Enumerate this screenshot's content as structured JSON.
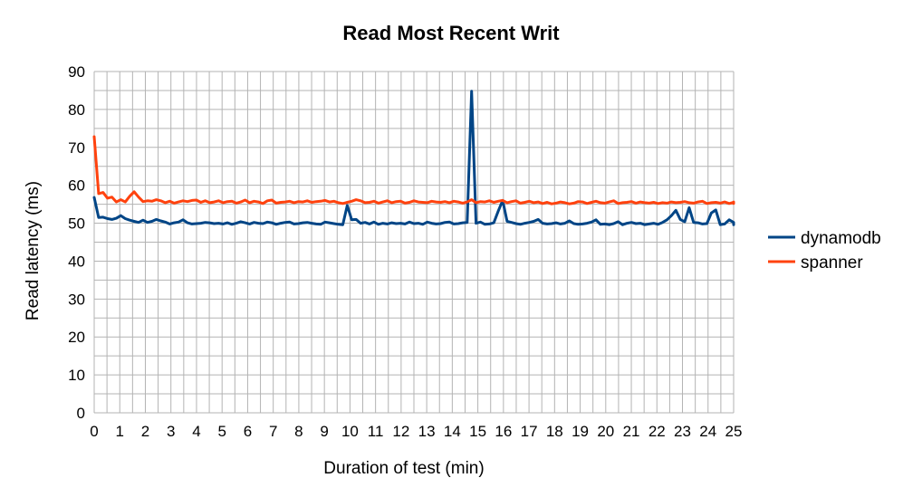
{
  "chart_data": {
    "type": "line",
    "title": "Read Most Recent Writ",
    "xlabel": "Duration of test (min)",
    "ylabel": "Read latency (ms)",
    "xlim": [
      0,
      25
    ],
    "ylim": [
      0,
      90
    ],
    "x_ticks": [
      0,
      1,
      2,
      3,
      4,
      5,
      6,
      7,
      8,
      9,
      10,
      11,
      12,
      13,
      14,
      15,
      16,
      17,
      18,
      19,
      20,
      21,
      22,
      23,
      24,
      25
    ],
    "y_ticks": [
      0,
      10,
      20,
      30,
      40,
      50,
      60,
      70,
      80,
      90
    ],
    "grid": true,
    "legend_position": "right",
    "x_step": 0.1736,
    "series": [
      {
        "name": "dynamodb",
        "color": "#004586",
        "values": [
          56.8,
          51.5,
          51.6,
          51.2,
          51.0,
          51.3,
          52.0,
          51.2,
          50.8,
          50.5,
          50.2,
          50.8,
          50.2,
          50.5,
          51.0,
          50.6,
          50.3,
          49.8,
          50.1,
          50.3,
          50.9,
          50.1,
          49.8,
          49.9,
          50.0,
          50.2,
          50.1,
          49.9,
          50.0,
          49.8,
          50.1,
          49.7,
          50.0,
          50.4,
          50.1,
          49.8,
          50.2,
          50.0,
          49.9,
          50.3,
          50.1,
          49.7,
          50.0,
          50.2,
          50.3,
          49.8,
          49.9,
          50.1,
          50.2,
          50.0,
          49.8,
          49.7,
          50.3,
          50.1,
          49.9,
          49.7,
          49.6,
          54.7,
          50.9,
          51.0,
          50.0,
          50.2,
          49.8,
          50.3,
          49.7,
          50.0,
          49.8,
          50.1,
          49.9,
          50.0,
          49.8,
          50.3,
          49.9,
          50.0,
          49.7,
          50.3,
          50.0,
          49.8,
          49.9,
          50.2,
          50.3,
          49.8,
          49.9,
          50.1,
          50.2,
          84.8,
          50.0,
          50.3,
          49.7,
          49.8,
          50.1,
          53.2,
          56.0,
          50.5,
          50.2,
          49.9,
          49.7,
          50.0,
          50.2,
          50.5,
          51.0,
          50.0,
          49.8,
          49.9,
          50.1,
          49.8,
          50.0,
          50.6,
          49.9,
          49.7,
          49.8,
          50.0,
          50.3,
          50.9,
          49.7,
          49.8,
          49.6,
          49.9,
          50.4,
          49.6,
          50.0,
          50.2,
          49.9,
          50.0,
          49.6,
          49.8,
          50.0,
          49.7,
          50.2,
          50.9,
          52.0,
          53.4,
          51.0,
          50.4,
          54.1,
          50.2,
          50.1,
          49.8,
          49.9,
          52.7,
          53.5,
          49.6,
          49.8,
          50.9,
          50.2,
          49.8,
          50.0,
          49.8,
          49.9,
          49.6,
          49.9
        ]
      },
      {
        "name": "spanner",
        "color": "#ff420e",
        "values": [
          72.8,
          57.8,
          58.1,
          56.6,
          56.9,
          55.6,
          56.2,
          55.6,
          57.1,
          58.3,
          56.9,
          55.7,
          55.9,
          55.8,
          56.2,
          55.9,
          55.4,
          55.8,
          55.3,
          55.6,
          55.9,
          55.7,
          56.0,
          56.1,
          55.5,
          55.9,
          55.4,
          55.6,
          55.9,
          55.4,
          55.7,
          55.8,
          55.3,
          55.6,
          56.1,
          55.4,
          55.8,
          55.6,
          55.2,
          55.9,
          56.1,
          55.3,
          55.5,
          55.6,
          55.8,
          55.4,
          55.7,
          55.6,
          55.9,
          55.5,
          55.7,
          55.8,
          56.0,
          55.6,
          55.8,
          55.4,
          55.2,
          55.5,
          55.8,
          56.2,
          55.9,
          55.4,
          55.5,
          55.8,
          55.3,
          55.6,
          55.9,
          55.4,
          55.7,
          55.8,
          55.3,
          55.5,
          55.9,
          55.6,
          55.5,
          55.4,
          55.8,
          55.6,
          55.5,
          55.7,
          55.4,
          55.8,
          55.6,
          55.3,
          55.6,
          56.2,
          55.4,
          55.7,
          55.6,
          55.9,
          55.5,
          55.8,
          56.0,
          55.4,
          55.7,
          55.9,
          55.3,
          55.5,
          55.8,
          55.4,
          55.6,
          55.2,
          55.5,
          55.1,
          55.3,
          55.6,
          55.4,
          55.1,
          55.3,
          55.7,
          55.6,
          55.2,
          55.5,
          55.8,
          55.4,
          55.3,
          55.6,
          55.9,
          55.2,
          55.4,
          55.5,
          55.7,
          55.3,
          55.6,
          55.4,
          55.3,
          55.5,
          55.2,
          55.4,
          55.3,
          55.6,
          55.4,
          55.5,
          55.7,
          55.4,
          55.3,
          55.6,
          55.8,
          55.2,
          55.4,
          55.5,
          55.3,
          55.6,
          55.2,
          55.5,
          55.4,
          55.3,
          55.6,
          55.2
        ]
      }
    ]
  }
}
